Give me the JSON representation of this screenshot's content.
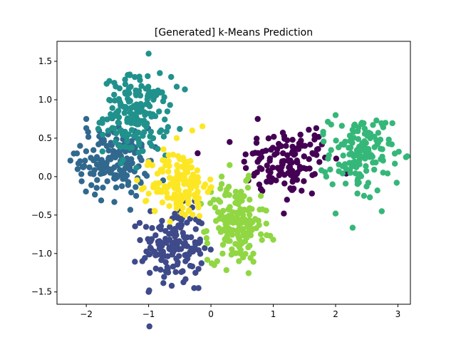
{
  "chart_data": {
    "type": "scatter",
    "title": "[Generated] k-Means Prediction",
    "xlabel": "",
    "ylabel": "",
    "xlim": [
      -2.47,
      3.2
    ],
    "ylim": [
      -1.66,
      1.76
    ],
    "xticks": [
      -2,
      -1,
      0,
      1,
      2,
      3
    ],
    "xtick_labels": [
      "−2",
      "−1",
      "0",
      "1",
      "2",
      "3"
    ],
    "yticks": [
      -1.5,
      -1.0,
      -0.5,
      0.0,
      0.5,
      1.0,
      1.5
    ],
    "ytick_labels": [
      "−1.5",
      "−1.0",
      "−0.5",
      "0.0",
      "0.5",
      "1.0",
      "1.5"
    ],
    "grid": false,
    "legend": "none",
    "clusters": [
      {
        "color": "#440154",
        "center": [
          1.2,
          0.2
        ],
        "spread": [
          0.35,
          0.22
        ],
        "n": 120,
        "points": [
          [
            0.75,
            0.75
          ],
          [
            1.57,
            0.61
          ],
          [
            1.69,
            0.63
          ],
          [
            1.72,
            0.36
          ],
          [
            0.67,
            0.3
          ],
          [
            1.74,
            0.19
          ],
          [
            0.8,
            -0.16
          ],
          [
            1.22,
            -0.3
          ],
          [
            1.62,
            -0.22
          ],
          [
            1.17,
            -0.48
          ],
          [
            0.6,
            -0.05
          ],
          [
            1.78,
            0.42
          ]
        ]
      },
      {
        "color": "#3e4a89",
        "center": [
          -0.6,
          -0.9
        ],
        "spread": [
          0.25,
          0.25
        ],
        "n": 150,
        "points": [
          [
            -1.0,
            -1.5
          ],
          [
            -0.27,
            -1.45
          ],
          [
            -0.2,
            -1.45
          ],
          [
            -0.63,
            -1.42
          ],
          [
            -1.1,
            -1.1
          ],
          [
            -0.1,
            -0.93
          ],
          [
            -0.2,
            -1.2
          ],
          [
            -0.97,
            -0.45
          ],
          [
            -0.3,
            -0.4
          ]
        ]
      },
      {
        "color": "#31688e",
        "center": [
          -1.55,
          0.2
        ],
        "spread": [
          0.28,
          0.22
        ],
        "n": 150,
        "points": [
          [
            -2.2,
            0.3
          ],
          [
            -2.0,
            0.75
          ],
          [
            -2.0,
            0.63
          ],
          [
            -2.1,
            0.4
          ],
          [
            -2.1,
            0.2
          ],
          [
            -1.95,
            0.12
          ],
          [
            -1.55,
            -0.33
          ],
          [
            -1.2,
            -0.25
          ],
          [
            -1.0,
            0.2
          ],
          [
            -1.65,
            0.55
          ],
          [
            -1.72,
            0.48
          ]
        ]
      },
      {
        "color": "#21918c",
        "center": [
          -1.2,
          0.8
        ],
        "spread": [
          0.26,
          0.25
        ],
        "n": 170,
        "points": [
          [
            -1.0,
            1.6
          ],
          [
            -1.3,
            1.32
          ],
          [
            -1.55,
            1.22
          ],
          [
            -0.55,
            1.17
          ],
          [
            -0.85,
            1.12
          ],
          [
            -0.82,
            0.58
          ],
          [
            -0.5,
            0.62
          ],
          [
            -1.45,
            0.95
          ],
          [
            -0.95,
            0.4
          ]
        ]
      },
      {
        "color": "#35b779",
        "center": [
          2.4,
          0.3
        ],
        "spread": [
          0.25,
          0.25
        ],
        "n": 130,
        "points": [
          [
            2.0,
            0.8
          ],
          [
            2.0,
            -0.48
          ],
          [
            2.35,
            -0.22
          ],
          [
            2.55,
            -0.27
          ],
          [
            2.95,
            0.3
          ],
          [
            2.8,
            0.7
          ],
          [
            2.9,
            0.42
          ],
          [
            1.85,
            0.0
          ],
          [
            1.8,
            0.55
          ],
          [
            2.98,
            -0.08
          ],
          [
            1.95,
            -0.1
          ]
        ]
      },
      {
        "color": "#90d743",
        "center": [
          0.4,
          -0.6
        ],
        "spread": [
          0.22,
          0.25
        ],
        "n": 160,
        "points": [
          [
            0.1,
            -1.1
          ],
          [
            0.45,
            -1.1
          ],
          [
            0.35,
            -1.0
          ],
          [
            1.0,
            -0.82
          ],
          [
            0.95,
            -0.77
          ],
          [
            0.8,
            -0.75
          ],
          [
            0.62,
            -0.9
          ],
          [
            0.0,
            -0.2
          ],
          [
            0.3,
            0.15
          ],
          [
            -0.07,
            -0.8
          ],
          [
            0.8,
            -0.25
          ]
        ]
      },
      {
        "color": "#fde725",
        "center": [
          -0.5,
          -0.1
        ],
        "spread": [
          0.22,
          0.22
        ],
        "n": 150,
        "points": [
          [
            -0.3,
            0.6
          ],
          [
            -0.55,
            0.5
          ],
          [
            -1.05,
            -0.32
          ],
          [
            -0.9,
            -0.45
          ],
          [
            -0.2,
            -0.4
          ],
          [
            -0.05,
            -0.2
          ],
          [
            -0.95,
            0.15
          ]
        ]
      }
    ]
  }
}
